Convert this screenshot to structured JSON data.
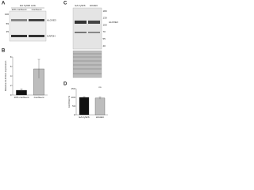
{
  "panels": {
    "a": "A",
    "b": "B",
    "c": "C",
    "d": "D"
  },
  "blot_a": {
    "header": "EA.hy926 cells",
    "lanes": [
      "10% confluent",
      "Confluent"
    ],
    "markers": [
      "100",
      "55",
      "35"
    ],
    "bands": [
      "ALOXE3",
      "GAPDH"
    ]
  },
  "blot_c": {
    "lanes": [
      "EA.hy926",
      "HUAEC"
    ],
    "markers": [
      "180",
      "130",
      "100",
      "70",
      "55",
      "40"
    ],
    "bands": [
      "ALOXE3"
    ]
  },
  "chart_data": [
    {
      "type": "bar",
      "ylabel": "Relative ALOXE3 expression",
      "categories": [
        "10% confluent",
        "Confluent"
      ],
      "values": [
        1,
        5.5
      ],
      "errors": [
        0.3,
        2
      ],
      "colors": [
        "#111111",
        "#bdbdbd"
      ],
      "ylim": [
        0,
        8
      ],
      "yticks": [
        0,
        2,
        4,
        6,
        8
      ]
    },
    {
      "type": "bar",
      "ylabel": "ALOXE3 %",
      "categories": [
        "EA.hy926",
        "HUAEC"
      ],
      "values": [
        100,
        96
      ],
      "errors": [
        4,
        6
      ],
      "colors": [
        "#111111",
        "#bdbdbd"
      ],
      "ylim": [
        0,
        150
      ],
      "yticks": [
        0,
        50,
        100,
        150
      ],
      "annotation": "ns"
    }
  ]
}
